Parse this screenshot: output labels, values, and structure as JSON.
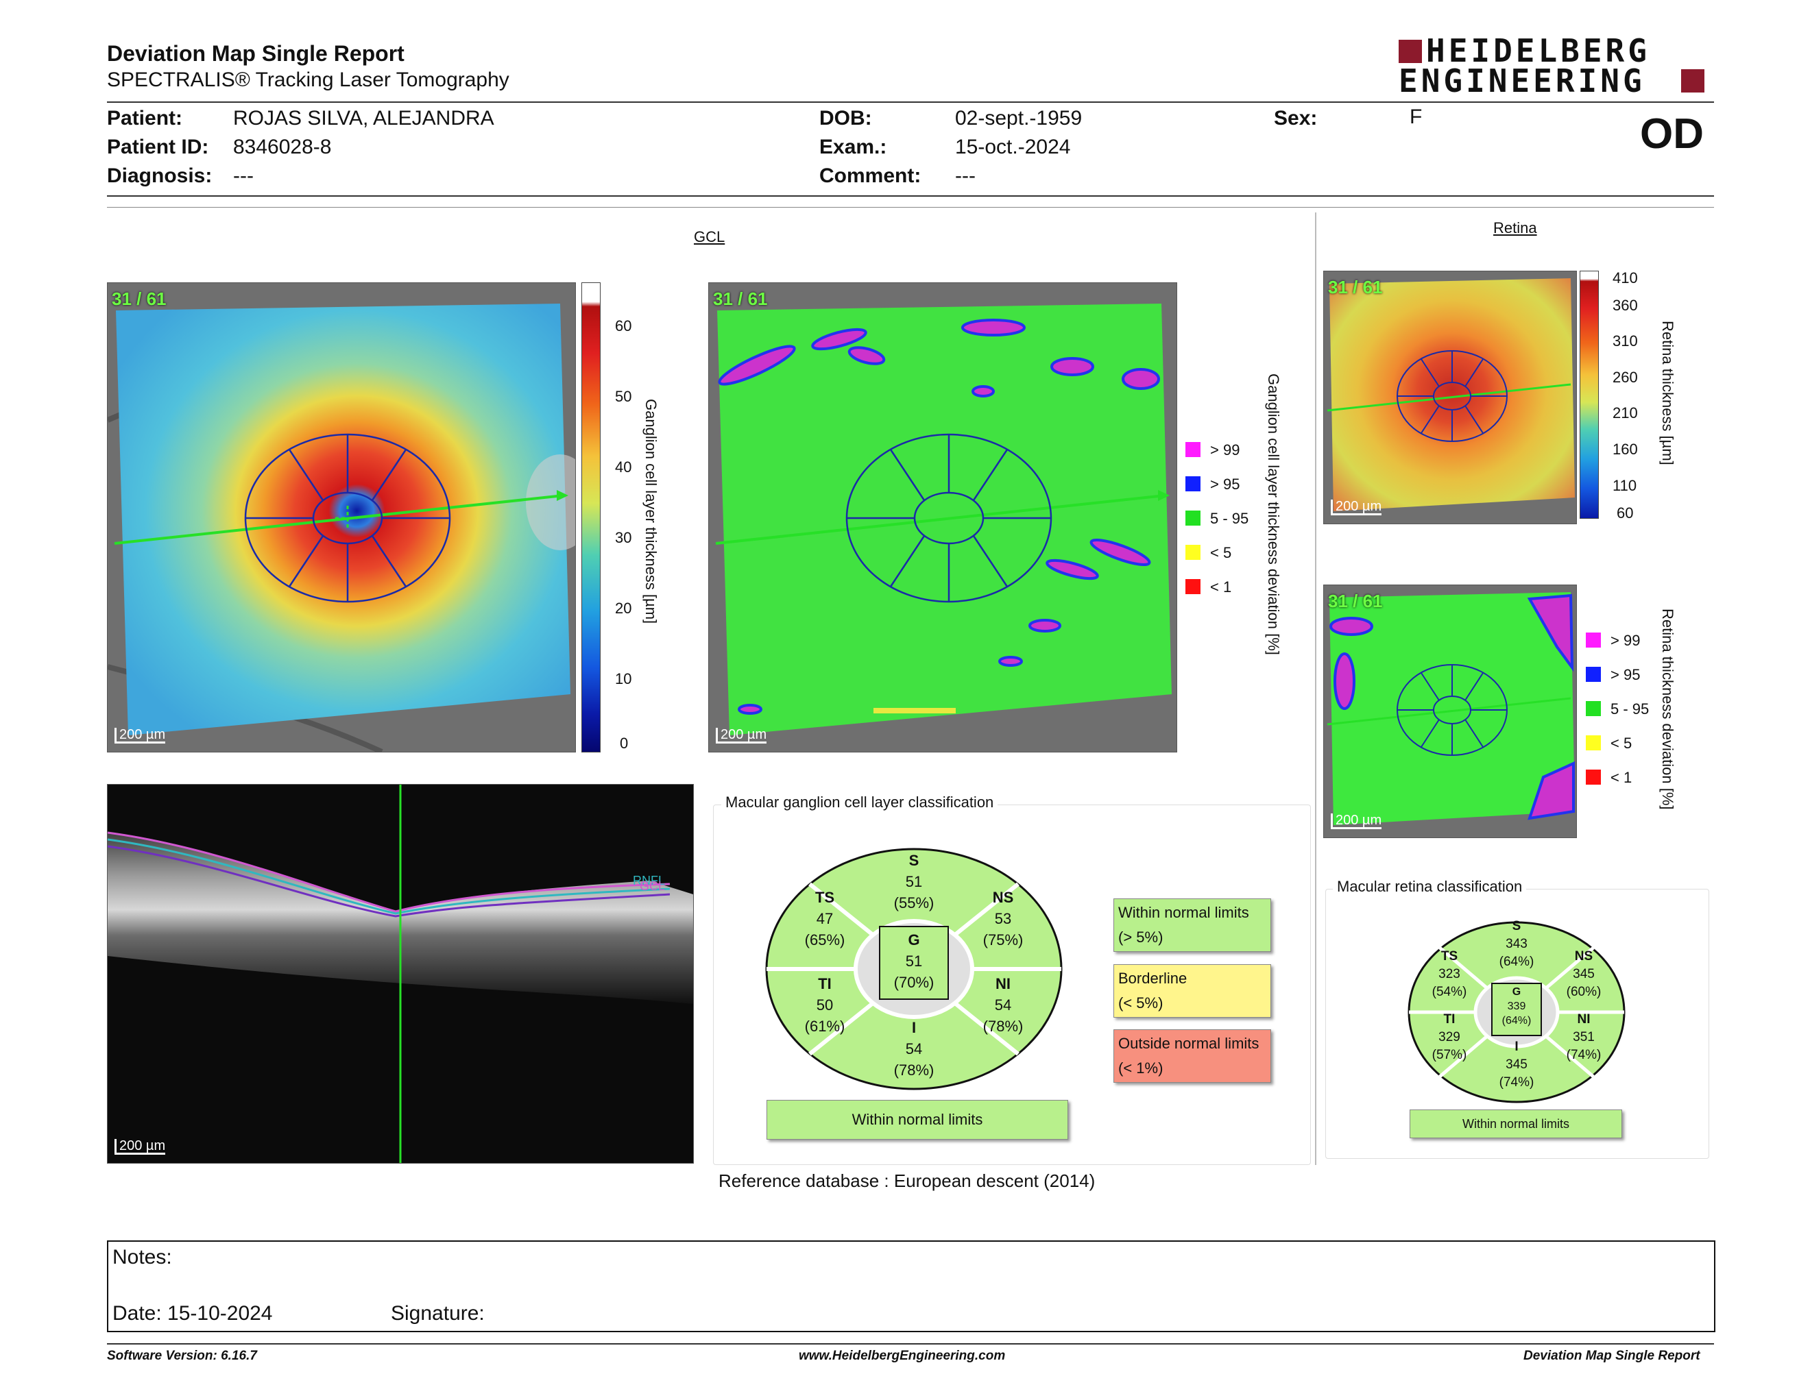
{
  "header": {
    "title": "Deviation Map Single Report",
    "subtitle": "SPECTRALIS® Tracking Laser Tomography",
    "logo_line1": "HEIDELBERG",
    "logo_line2": "ENGINEERING",
    "eye": "OD"
  },
  "patient": {
    "patient_label": "Patient:",
    "patient_value": "ROJAS SILVA, ALEJANDRA",
    "id_label": "Patient ID:",
    "id_value": "8346028-8",
    "diag_label": "Diagnosis:",
    "diag_value": "---",
    "dob_label": "DOB:",
    "dob_value": "02-sept.-1959",
    "exam_label": "Exam.:",
    "exam_value": "15-oct.-2024",
    "comment_label": "Comment:",
    "comment_value": "---",
    "sex_label": "Sex:",
    "sex_value": "F"
  },
  "gcl": {
    "section": "GCL",
    "frame": "31 / 61",
    "scale": "200 µm",
    "thickness_axis": "Ganglion cell layer thickness [µm]",
    "thickness_ticks": [
      "60",
      "50",
      "40",
      "30",
      "20",
      "10",
      "0"
    ],
    "deviation_axis": "Ganglion cell layer thickness deviation [%]",
    "legend": [
      {
        "label": "> 99",
        "color": "#ff1aff"
      },
      {
        "label": "> 95",
        "color": "#1020ff"
      },
      {
        "label": "5 - 95",
        "color": "#22e022"
      },
      {
        "label": "< 5",
        "color": "#ffff20"
      },
      {
        "label": "< 1",
        "color": "#ff1010"
      }
    ]
  },
  "bscan": {
    "scale": "200 µm",
    "layer1": "RNFL",
    "layer2": "GCL"
  },
  "gcl_classification": {
    "title": "Macular ganglion cell layer classification",
    "sectors": {
      "S": {
        "name": "S",
        "value": "51",
        "pct": "(55%)"
      },
      "TS": {
        "name": "TS",
        "value": "47",
        "pct": "(65%)"
      },
      "NS": {
        "name": "NS",
        "value": "53",
        "pct": "(75%)"
      },
      "G": {
        "name": "G",
        "value": "51",
        "pct": "(70%)"
      },
      "TI": {
        "name": "TI",
        "value": "50",
        "pct": "(61%)"
      },
      "NI": {
        "name": "NI",
        "value": "54",
        "pct": "(78%)"
      },
      "I": {
        "name": "I",
        "value": "54",
        "pct": "(78%)"
      }
    },
    "result": "Within normal limits",
    "legend": {
      "normal_1": "Within normal limits",
      "normal_2": "(> 5%)",
      "border_1": "Borderline",
      "border_2": "(< 5%)",
      "outside_1": "Outside normal limits",
      "outside_2": "(< 1%)"
    },
    "colors": {
      "normal": "#b8f08c",
      "borderline": "#fff58c",
      "outside": "#f7907e"
    }
  },
  "reference": {
    "label": "Reference database :",
    "value": "European descent (2014)"
  },
  "retina": {
    "section": "Retina",
    "frame": "31 / 61",
    "scale": "200 µm",
    "thickness_axis": "Retina thickness [µm]",
    "thickness_ticks": [
      "410",
      "360",
      "310",
      "260",
      "210",
      "160",
      "110",
      "60"
    ],
    "deviation_axis": "Retina thickness deviation [%]",
    "legend": [
      {
        "label": "> 99",
        "color": "#ff1aff"
      },
      {
        "label": "> 95",
        "color": "#1020ff"
      },
      {
        "label": "5 - 95",
        "color": "#22e022"
      },
      {
        "label": "< 5",
        "color": "#ffff20"
      },
      {
        "label": "< 1",
        "color": "#ff1010"
      }
    ]
  },
  "retina_classification": {
    "title": "Macular retina classification",
    "sectors": {
      "S": {
        "name": "S",
        "value": "343",
        "pct": "(64%)"
      },
      "TS": {
        "name": "TS",
        "value": "323",
        "pct": "(54%)"
      },
      "NS": {
        "name": "NS",
        "value": "345",
        "pct": "(60%)"
      },
      "G": {
        "name": "G",
        "value": "339",
        "pct": "(64%)"
      },
      "TI": {
        "name": "TI",
        "value": "329",
        "pct": "(57%)"
      },
      "NI": {
        "name": "NI",
        "value": "351",
        "pct": "(74%)"
      },
      "I": {
        "name": "I",
        "value": "345",
        "pct": "(74%)"
      }
    },
    "result": "Within normal limits"
  },
  "notes": {
    "notes_label": "Notes:",
    "date_label": "Date: 15-10-2024",
    "signature_label": "Signature:"
  },
  "footer": {
    "software": "Software Version: 6.16.7",
    "website": "www.HeidelbergEngineering.com",
    "report": "Deviation Map Single Report"
  },
  "colors": {
    "brand": "#8c1a2c",
    "grid_blue": "#1a2aa8",
    "scan_line": "#27e027"
  }
}
